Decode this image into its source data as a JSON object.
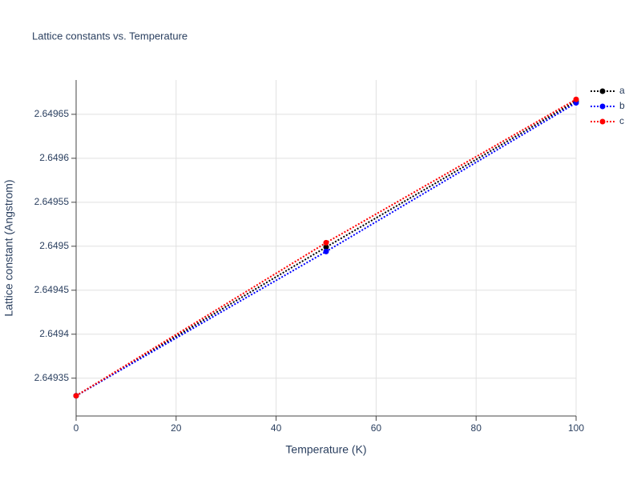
{
  "chart_data": {
    "type": "line",
    "title": "Lattice constants vs. Temperature",
    "x_label": "Temperature (K)",
    "y_label": "Lattice constant (Angstrom)",
    "x": [
      0,
      50,
      100
    ],
    "series": [
      {
        "name": "a",
        "color": "#000000",
        "values": [
          2.64933,
          2.649499,
          2.649665
        ]
      },
      {
        "name": "b",
        "color": "#0000ff",
        "values": [
          2.64933,
          2.649494,
          2.649663
        ]
      },
      {
        "name": "c",
        "color": "#ff0000",
        "values": [
          2.64933,
          2.649504,
          2.649667
        ]
      }
    ],
    "xlim": [
      0,
      100
    ],
    "xticks": [
      0,
      20,
      40,
      60,
      80,
      100
    ],
    "ylim": [
      2.649307,
      2.649689
    ],
    "yticks": [
      2.64935,
      2.6494,
      2.64945,
      2.6495,
      2.64955,
      2.6496,
      2.64965
    ],
    "grid": true,
    "legend": "top-right",
    "line_style": "dotted"
  }
}
